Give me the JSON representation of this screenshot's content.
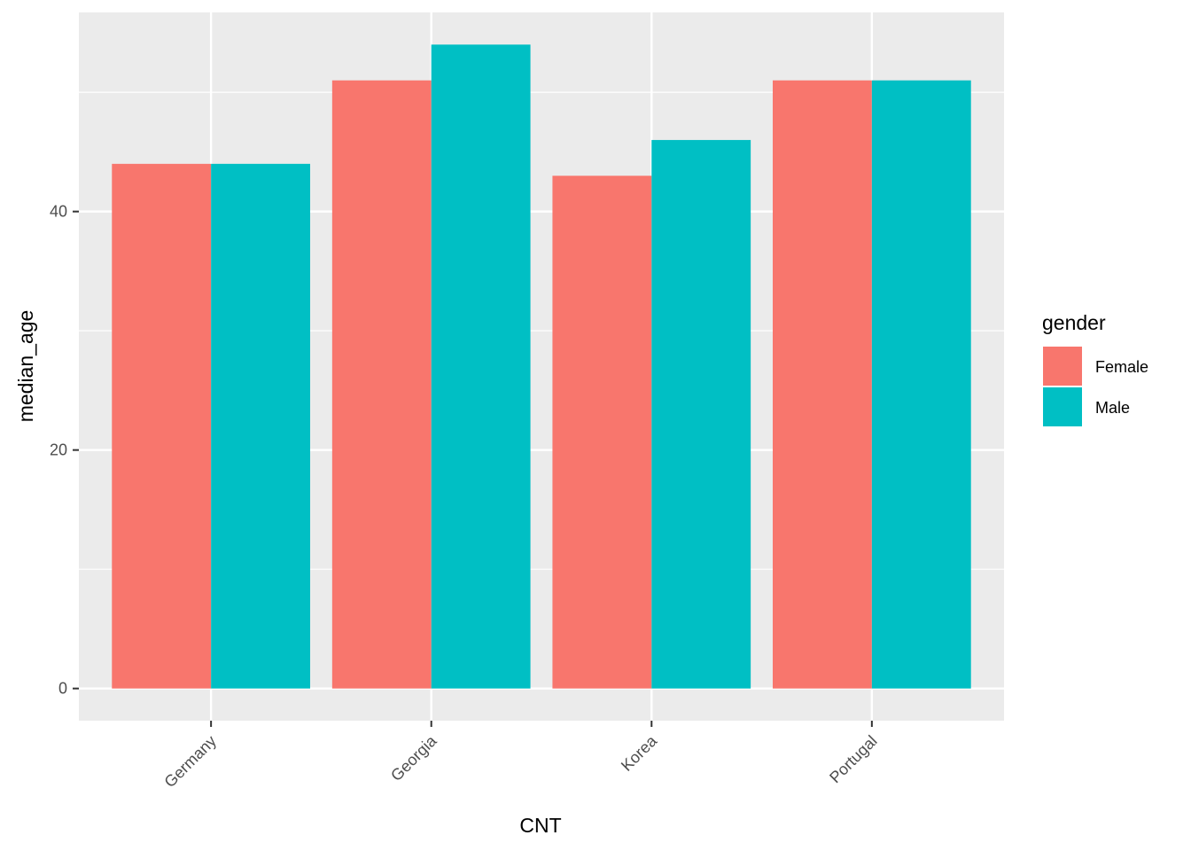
{
  "chart_data": {
    "type": "bar",
    "xlabel": "CNT",
    "ylabel": "median_age",
    "categories": [
      "Germany",
      "Georgia",
      "Korea",
      "Portugal"
    ],
    "series": [
      {
        "name": "Female",
        "color": "#F8766D",
        "values": [
          44,
          51,
          43,
          51
        ]
      },
      {
        "name": "Male",
        "color": "#00BFC4",
        "values": [
          44,
          54,
          46,
          51
        ]
      }
    ],
    "ylim": [
      -2.7,
      56.7
    ],
    "yticks": [
      0,
      20,
      40
    ],
    "grid": true,
    "legend": {
      "title": "gender",
      "position": "right"
    },
    "panel_background": "#EBEBEB",
    "grid_color": "#FFFFFF"
  }
}
